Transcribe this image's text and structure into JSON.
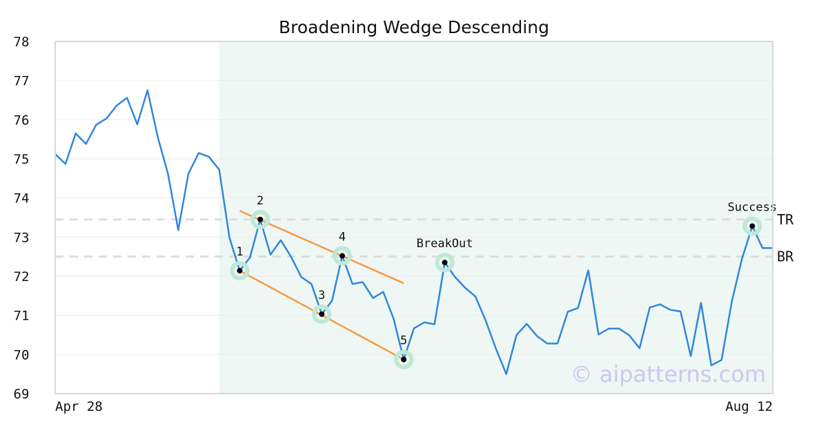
{
  "chart_data": {
    "type": "line",
    "title": "Broadening Wedge Descending",
    "xlabel": "",
    "ylabel": "",
    "ylim": [
      69,
      78
    ],
    "yticks": [
      "69",
      "70",
      "71",
      "72",
      "73",
      "74",
      "75",
      "76",
      "77",
      "78"
    ],
    "x_tick_labels": [
      "Apr 28",
      "Aug 12"
    ],
    "grid": true,
    "series": [
      {
        "color": "#2f86dd",
        "values": [
          75.12,
          74.87,
          75.65,
          75.38,
          75.87,
          76.03,
          76.36,
          76.56,
          75.88,
          76.75,
          75.56,
          74.62,
          73.18,
          74.62,
          75.15,
          75.05,
          74.72,
          72.98,
          72.14,
          72.48,
          73.45,
          72.55,
          72.92,
          72.5,
          71.98,
          71.8,
          71.03,
          71.37,
          72.52,
          71.8,
          71.85,
          71.44,
          71.6,
          70.92,
          69.87,
          70.67,
          70.82,
          70.77,
          72.35,
          71.98,
          71.7,
          71.48,
          70.86,
          70.14,
          69.5,
          70.5,
          70.78,
          70.47,
          70.28,
          70.28,
          71.09,
          71.19,
          72.15,
          70.51,
          70.66,
          70.66,
          70.49,
          70.16,
          71.2,
          71.28,
          71.14,
          71.1,
          69.96,
          71.32,
          69.72,
          69.86,
          71.35,
          72.45,
          73.28,
          72.72,
          72.72
        ]
      }
    ],
    "highlight_region": {
      "start_index": 16,
      "end_index": 70,
      "color": "#eef7f3"
    },
    "levels": [
      {
        "label": "TR",
        "value": 73.45
      },
      {
        "label": "BR",
        "value": 72.5
      }
    ],
    "trendlines": [
      {
        "color": "#f59a42",
        "from": {
          "index": 18,
          "value": 73.67
        },
        "to": {
          "index": 34,
          "value": 71.82
        }
      },
      {
        "color": "#f59a42",
        "from": {
          "index": 18,
          "value": 72.14
        },
        "to": {
          "index": 34,
          "value": 69.87
        }
      }
    ],
    "points": [
      {
        "label": "1",
        "index": 18,
        "value": 72.14,
        "label_pos": "above"
      },
      {
        "label": "2",
        "index": 20,
        "value": 73.45,
        "label_pos": "above"
      },
      {
        "label": "3",
        "index": 26,
        "value": 71.03,
        "label_pos": "above"
      },
      {
        "label": "4",
        "index": 28,
        "value": 72.52,
        "label_pos": "above"
      },
      {
        "label": "5",
        "index": 34,
        "value": 69.87,
        "label_pos": "above"
      },
      {
        "label": "BreakOut",
        "index": 38,
        "value": 72.35,
        "label_pos": "above"
      },
      {
        "label": "Success",
        "index": 68,
        "value": 73.28,
        "label_pos": "above"
      }
    ],
    "watermark": "© aipatterns.com",
    "colors": {
      "line": "#2f86dd",
      "trendline": "#f59a42",
      "point_halo": "#bfe8d6",
      "region": "#eef7f3",
      "level": "#dddddd"
    }
  }
}
